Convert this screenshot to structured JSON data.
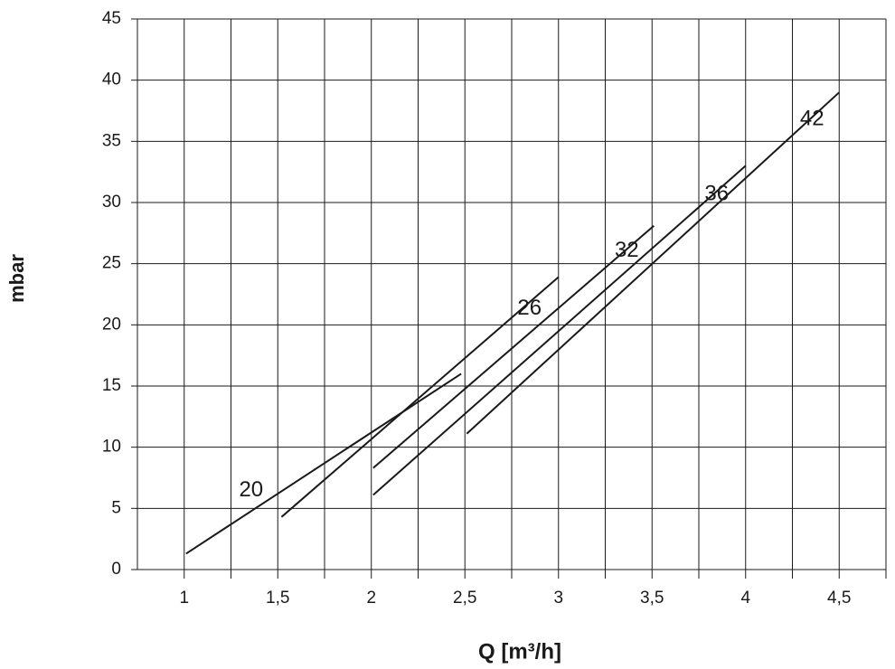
{
  "chart_data": {
    "type": "line",
    "xlabel": "Q [m³/h]",
    "ylabel": "mbar",
    "xlim": [
      0.75,
      4.75
    ],
    "xticks": [
      1,
      {
        "value": 1.5,
        "label": "1,5"
      },
      2,
      {
        "value": 2.5,
        "label": "2,5"
      },
      3,
      {
        "value": 3.5,
        "label": "3,5"
      },
      4,
      {
        "value": 4.5,
        "label": "4,5"
      }
    ],
    "xminor_ticks": [
      1.25,
      1.75,
      2.25,
      2.75,
      3.25,
      3.75,
      4.25,
      4.75
    ],
    "ylim": [
      0,
      45
    ],
    "yticks": [
      0,
      5,
      10,
      15,
      20,
      25,
      30,
      35,
      40,
      45
    ],
    "grid": true,
    "series": [
      {
        "name": "20",
        "color": "#1a1a1a",
        "x": [
          1.01,
          2.48
        ],
        "values": [
          1.3,
          16.0
        ]
      },
      {
        "name": "26",
        "color": "#1a1a1a",
        "x": [
          1.52,
          3.0
        ],
        "values": [
          4.3,
          23.9
        ]
      },
      {
        "name": "32",
        "color": "#1a1a1a",
        "x": [
          2.01,
          3.51
        ],
        "values": [
          8.3,
          28.1
        ]
      },
      {
        "name": "36",
        "color": "#1a1a1a",
        "x": [
          2.01,
          4.0
        ],
        "values": [
          6.1,
          33.0
        ]
      },
      {
        "name": "42",
        "color": "#1a1a1a",
        "x": [
          2.51,
          4.5
        ],
        "values": [
          11.1,
          39.0
        ]
      }
    ]
  }
}
